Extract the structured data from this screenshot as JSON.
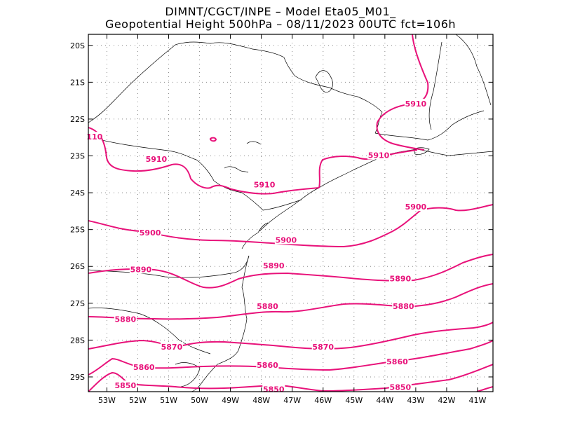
{
  "header": {
    "line1": "DIMNT/CGCT/INPE –   Model Eta05_M01_",
    "line2": "Geopotential Height 500hPa –   08/11/2023 00UTC fct=106h"
  },
  "map": {
    "lon_range": [
      -53.6,
      -40.5
    ],
    "lat_range": [
      -29.4,
      -19.7
    ],
    "x_ticks": [
      {
        "value": -53,
        "label": "53W"
      },
      {
        "value": -52,
        "label": "52W"
      },
      {
        "value": -51,
        "label": "51W"
      },
      {
        "value": -50,
        "label": "50W"
      },
      {
        "value": -49,
        "label": "49W"
      },
      {
        "value": -48,
        "label": "48W"
      },
      {
        "value": -47,
        "label": "47W"
      },
      {
        "value": -46,
        "label": "46W"
      },
      {
        "value": -45,
        "label": "45W"
      },
      {
        "value": -44,
        "label": "44W"
      },
      {
        "value": -43,
        "label": "43W"
      },
      {
        "value": -42,
        "label": "42W"
      },
      {
        "value": -41,
        "label": "41W"
      }
    ],
    "y_ticks": [
      {
        "value": -20,
        "label": "20S"
      },
      {
        "value": -21,
        "label": "21S"
      },
      {
        "value": -22,
        "label": "22S"
      },
      {
        "value": -23,
        "label": "23S"
      },
      {
        "value": -24,
        "label": "24S"
      },
      {
        "value": -25,
        "label": "25S"
      },
      {
        "value": -26,
        "label": "26S"
      },
      {
        "value": -27,
        "label": "27S"
      },
      {
        "value": -28,
        "label": "28S"
      },
      {
        "value": -29,
        "label": "29S"
      }
    ],
    "grid": true,
    "contour_color": "#e8127a",
    "contour_labels": [
      {
        "text": "5910",
        "lon": -43.0,
        "lat": -21.6
      },
      {
        "text": "5910",
        "lon": -51.4,
        "lat": -23.1
      },
      {
        "text": "5910",
        "lon": -47.9,
        "lat": -23.8
      },
      {
        "text": "5910",
        "lon": -44.2,
        "lat": -23.0
      },
      {
        "text": "110",
        "lon": -53.4,
        "lat": -22.5
      },
      {
        "text": "5900",
        "lon": -51.6,
        "lat": -25.1
      },
      {
        "text": "5900",
        "lon": -47.2,
        "lat": -25.3
      },
      {
        "text": "5900",
        "lon": -43.0,
        "lat": -24.4
      },
      {
        "text": "5890",
        "lon": -51.9,
        "lat": -26.1
      },
      {
        "text": "5890",
        "lon": -47.6,
        "lat": -26.0
      },
      {
        "text": "5890",
        "lon": -43.5,
        "lat": -26.35
      },
      {
        "text": "5880",
        "lon": -47.8,
        "lat": -27.1
      },
      {
        "text": "5880",
        "lon": -43.4,
        "lat": -27.1
      },
      {
        "text": "5880",
        "lon": -52.4,
        "lat": -27.45
      },
      {
        "text": "5870",
        "lon": -50.9,
        "lat": -28.2
      },
      {
        "text": "5870",
        "lon": -46.0,
        "lat": -28.2
      },
      {
        "text": "5860",
        "lon": -51.8,
        "lat": -28.75
      },
      {
        "text": "5860",
        "lon": -47.8,
        "lat": -28.7
      },
      {
        "text": "5860",
        "lon": -43.6,
        "lat": -28.6
      },
      {
        "text": "5850",
        "lon": -52.4,
        "lat": -29.25
      },
      {
        "text": "5850",
        "lon": -47.6,
        "lat": -29.35
      },
      {
        "text": "5850",
        "lon": -43.5,
        "lat": -29.3
      }
    ]
  }
}
